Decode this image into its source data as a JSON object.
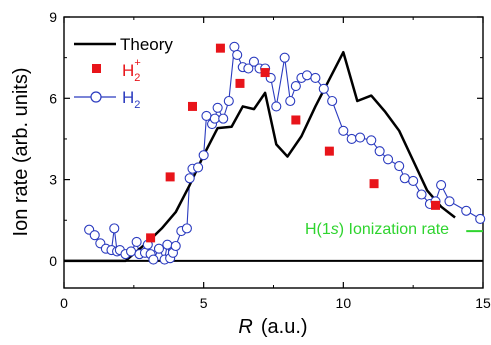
{
  "chart_data": {
    "type": "line",
    "xlabel_var": "R",
    "xlabel_unit": "(a.u.)",
    "ylabel": "Ion rate  (arb. units)",
    "xlim": [
      0,
      15
    ],
    "ylim": [
      -1,
      9
    ],
    "xticks": [
      "0",
      "5",
      "10",
      "15"
    ],
    "yticks": [
      "0",
      "3",
      "6",
      "9"
    ],
    "colors": {
      "theory": "#000000",
      "h2plus": "#e8141a",
      "h2": "#2b3bbf",
      "annot": "#2fd42f"
    },
    "legend": {
      "theory": "Theory",
      "h2plus_base": "H",
      "h2plus_sub": "2",
      "h2plus_sup": "+",
      "h2_base": "H",
      "h2_sub": "2"
    },
    "annotation": {
      "pre": "H(1",
      "italic": "s",
      "post": ") Ionization rate",
      "line_x": [
        14.4,
        15.0
      ],
      "y": 1.1
    },
    "series": [
      {
        "name": "Theory",
        "style": "line",
        "x": [
          0.0,
          2.2,
          2.6,
          3.0,
          3.5,
          4.0,
          4.5,
          5.0,
          5.5,
          6.0,
          6.4,
          6.8,
          7.2,
          7.6,
          8.0,
          8.5,
          9.0,
          9.5,
          10.0,
          10.5,
          11.0,
          11.5,
          12.0,
          12.5,
          13.0,
          13.5,
          14.0
        ],
        "y": [
          0.0,
          0.0,
          0.35,
          0.7,
          1.2,
          1.8,
          2.8,
          3.9,
          4.9,
          4.95,
          5.7,
          5.6,
          6.2,
          4.3,
          3.85,
          4.6,
          5.7,
          6.7,
          7.7,
          5.9,
          6.1,
          5.5,
          4.8,
          3.7,
          2.6,
          2.0,
          1.6
        ]
      },
      {
        "name": "H2+",
        "style": "square",
        "x": [
          3.1,
          3.8,
          4.6,
          5.6,
          6.3,
          7.2,
          8.3,
          9.5,
          11.1,
          13.3
        ],
        "y": [
          0.85,
          3.1,
          5.7,
          7.85,
          6.55,
          6.95,
          5.2,
          4.05,
          2.85,
          2.05
        ]
      },
      {
        "name": "H2",
        "style": "circle-line",
        "x": [
          0.9,
          1.1,
          1.3,
          1.5,
          1.7,
          1.8,
          1.9,
          2.0,
          2.2,
          2.4,
          2.6,
          2.7,
          2.9,
          3.0,
          3.1,
          3.2,
          3.4,
          3.6,
          3.7,
          3.8,
          3.9,
          4.0,
          4.2,
          4.4,
          4.5,
          4.6,
          4.8,
          5.0,
          5.1,
          5.3,
          5.4,
          5.5,
          5.7,
          5.9,
          6.1,
          6.2,
          6.4,
          6.6,
          6.8,
          7.0,
          7.2,
          7.4,
          7.6,
          7.9,
          8.1,
          8.3,
          8.5,
          8.7,
          9.0,
          9.3,
          9.6,
          10.0,
          10.3,
          10.6,
          11.0,
          11.3,
          11.6,
          12.0,
          12.2,
          12.5,
          12.8,
          13.1,
          13.3,
          13.5,
          13.8,
          14.4,
          14.9
        ],
        "y": [
          1.15,
          0.95,
          0.65,
          0.45,
          0.4,
          1.2,
          0.35,
          0.4,
          0.25,
          0.35,
          0.7,
          0.25,
          0.3,
          0.6,
          0.25,
          0.05,
          0.45,
          0.05,
          0.6,
          0.1,
          0.3,
          0.55,
          1.1,
          1.2,
          3.05,
          3.4,
          3.45,
          3.9,
          5.35,
          5.05,
          5.25,
          5.65,
          5.25,
          5.9,
          7.9,
          7.6,
          7.15,
          7.1,
          7.35,
          7.1,
          7.1,
          6.75,
          5.7,
          7.5,
          5.9,
          6.45,
          6.75,
          6.85,
          6.75,
          6.35,
          5.9,
          4.8,
          4.5,
          4.55,
          4.45,
          4.05,
          3.75,
          3.5,
          3.05,
          2.95,
          2.45,
          2.1,
          2.2,
          2.8,
          2.2,
          1.85,
          1.55
        ]
      }
    ]
  }
}
